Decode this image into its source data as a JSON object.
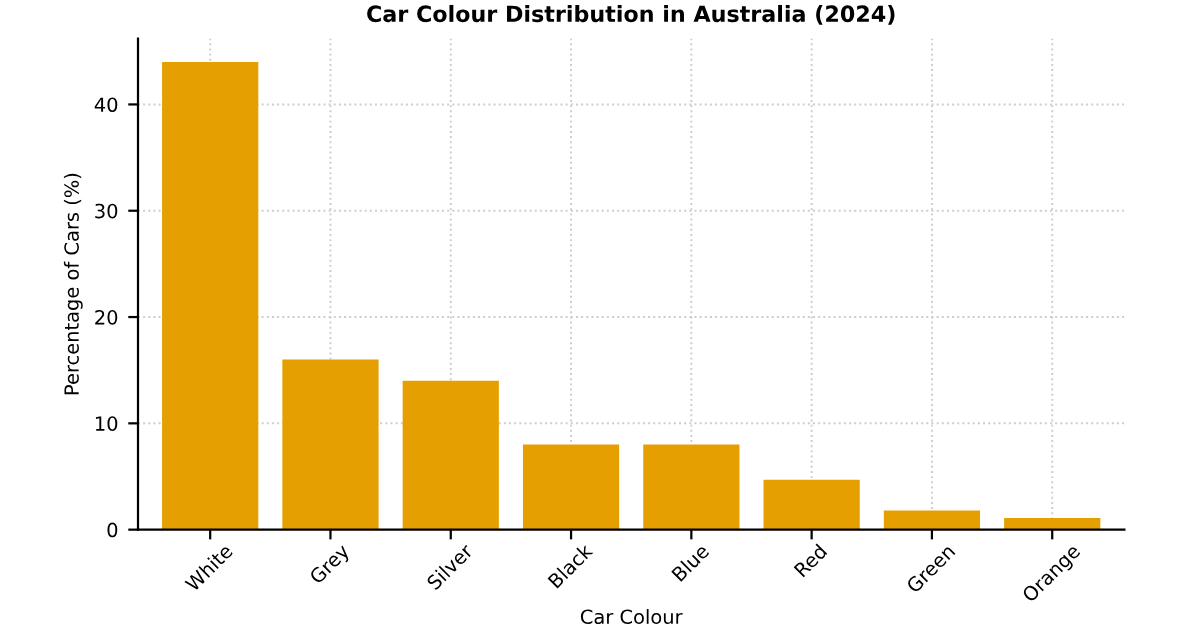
{
  "chart_data": {
    "type": "bar",
    "title": "Car Colour Distribution in Australia (2024)",
    "xlabel": "Car Colour",
    "ylabel": "Percentage of Cars (%)",
    "categories": [
      "White",
      "Grey",
      "Silver",
      "Black",
      "Blue",
      "Red",
      "Green",
      "Orange"
    ],
    "values": [
      44,
      16,
      14,
      8,
      8,
      4.7,
      1.8,
      1.1
    ],
    "color": "#e69f00",
    "ylim": [
      0,
      46.2
    ],
    "yticks": [
      0,
      10,
      20,
      30,
      40
    ],
    "grid": true
  }
}
